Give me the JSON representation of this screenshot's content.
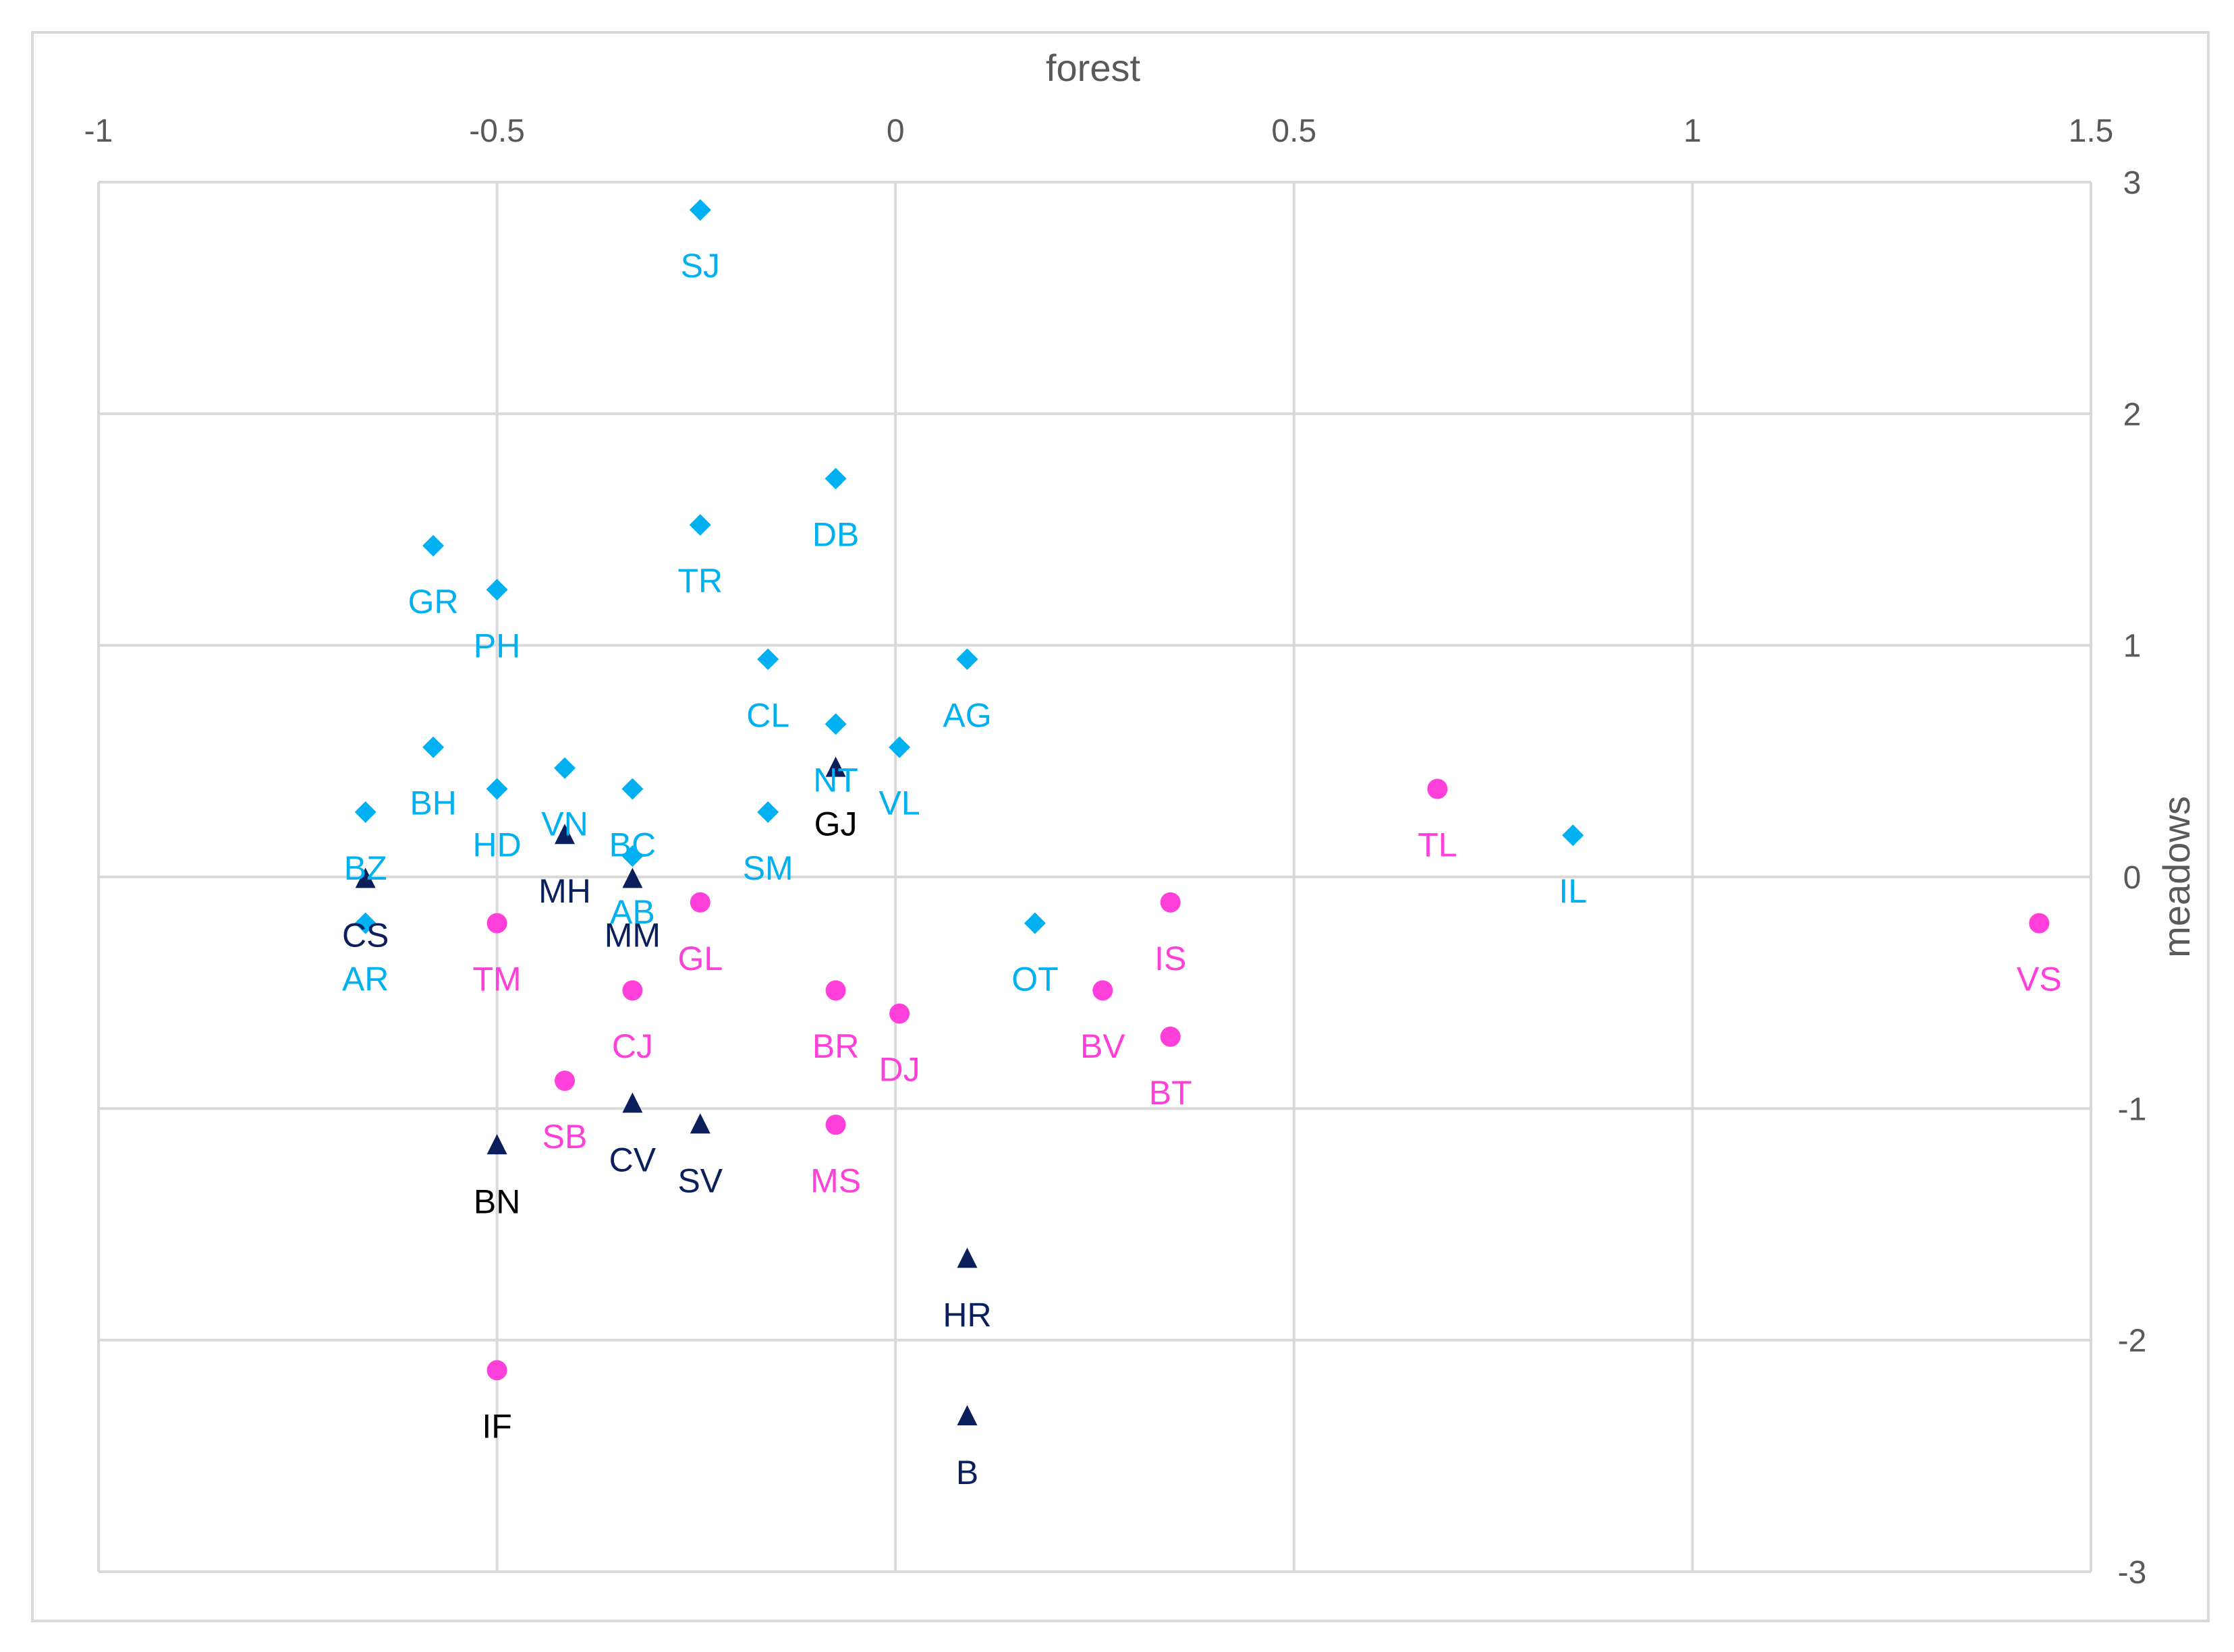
{
  "colors": {
    "background": "#ffffff",
    "gridline": "#d9d9d9",
    "frame": "#d9d9d9",
    "axis_text": "#595959",
    "cyan_diamond": "#00b0f0",
    "magenta_circle": "#ff3fd9",
    "navy_triangle": "#0a1f5c",
    "black_label": "#000000"
  },
  "chart_data": {
    "type": "scatter",
    "title": "",
    "xlabel": "forest",
    "ylabel": "meadows",
    "xlim": [
      -1,
      1.5
    ],
    "ylim": [
      -3,
      3
    ],
    "x_ticks": [
      "-1",
      "-0.5",
      "0",
      "0.5",
      "1",
      "1.5"
    ],
    "y_ticks": [
      "3",
      "2",
      "1",
      "0",
      "-1",
      "-2",
      "-3"
    ],
    "x_tick_values": [
      -1,
      -0.5,
      0,
      0.5,
      1,
      1.5
    ],
    "y_tick_values": [
      3,
      2,
      1,
      0,
      -1,
      -2,
      -3
    ],
    "grid": true,
    "x_axis_position": "top",
    "y_axis_position": "right",
    "legend": "none",
    "series": [
      {
        "name": "diamond",
        "marker": "diamond",
        "color": "#00b0f0",
        "points": [
          {
            "label": "SJ",
            "x": -0.245,
            "y": 2.88
          },
          {
            "label": "DB",
            "x": -0.075,
            "y": 1.72
          },
          {
            "label": "TR",
            "x": -0.245,
            "y": 1.52
          },
          {
            "label": "GR",
            "x": -0.58,
            "y": 1.43
          },
          {
            "label": "PH",
            "x": -0.5,
            "y": 1.24
          },
          {
            "label": "CL",
            "x": -0.16,
            "y": 0.94
          },
          {
            "label": "AG",
            "x": 0.09,
            "y": 0.94
          },
          {
            "label": "NT",
            "x": -0.075,
            "y": 0.66
          },
          {
            "label": "BH",
            "x": -0.58,
            "y": 0.56
          },
          {
            "label": "VL",
            "x": 0.005,
            "y": 0.56
          },
          {
            "label": "VN",
            "x": -0.415,
            "y": 0.47
          },
          {
            "label": "HD",
            "x": -0.5,
            "y": 0.38
          },
          {
            "label": "BC",
            "x": -0.33,
            "y": 0.38
          },
          {
            "label": "BZ",
            "x": -0.665,
            "y": 0.28
          },
          {
            "label": "SM",
            "x": -0.16,
            "y": 0.28
          },
          {
            "label": "AB",
            "x": -0.33,
            "y": 0.09
          },
          {
            "label": "IL",
            "x": 0.85,
            "y": 0.18
          },
          {
            "label": "AR",
            "x": -0.665,
            "y": -0.2
          },
          {
            "label": "OT",
            "x": 0.175,
            "y": -0.2
          }
        ]
      },
      {
        "name": "circle",
        "marker": "circle",
        "color": "#ff3fd9",
        "points": [
          {
            "label": "TL",
            "x": 0.68,
            "y": 0.38
          },
          {
            "label": "GL",
            "x": -0.245,
            "y": -0.11
          },
          {
            "label": "IS",
            "x": 0.345,
            "y": -0.11
          },
          {
            "label": "TM",
            "x": -0.5,
            "y": -0.2
          },
          {
            "label": "VS",
            "x": 1.435,
            "y": -0.2
          },
          {
            "label": "CJ",
            "x": -0.33,
            "y": -0.49
          },
          {
            "label": "BR",
            "x": -0.075,
            "y": -0.49
          },
          {
            "label": "BV",
            "x": 0.26,
            "y": -0.49
          },
          {
            "label": "DJ",
            "x": 0.005,
            "y": -0.59
          },
          {
            "label": "BT",
            "x": 0.345,
            "y": -0.69
          },
          {
            "label": "SB",
            "x": -0.415,
            "y": -0.88
          },
          {
            "label": "MS",
            "x": -0.075,
            "y": -1.07
          },
          {
            "label": "IF",
            "x": -0.5,
            "y": -2.13
          }
        ]
      },
      {
        "name": "triangle",
        "marker": "triangle",
        "color": "#0a1f5c",
        "points": [
          {
            "label": "GJ",
            "x": -0.075,
            "y": 0.47
          },
          {
            "label": "MH",
            "x": -0.415,
            "y": 0.18
          },
          {
            "label": "CS",
            "x": -0.665,
            "y": -0.01
          },
          {
            "label": "MM",
            "x": -0.33,
            "y": -0.01
          },
          {
            "label": "CV",
            "x": -0.33,
            "y": -0.98
          },
          {
            "label": "SV",
            "x": -0.245,
            "y": -1.07
          },
          {
            "label": "BN",
            "x": -0.5,
            "y": -1.16
          },
          {
            "label": "HR",
            "x": 0.09,
            "y": -1.65
          },
          {
            "label": "B",
            "x": 0.09,
            "y": -2.33
          }
        ]
      }
    ]
  }
}
